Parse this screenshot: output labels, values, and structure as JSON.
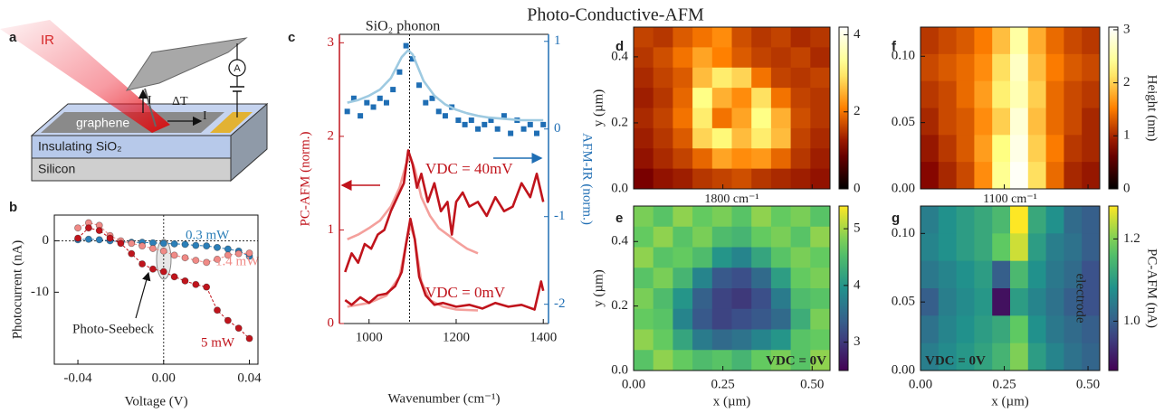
{
  "title": "Photo-Conductive-AFM",
  "schematic": {
    "panel": "a",
    "ir": "IR",
    "current_tip": "I",
    "delta_t": "ΔT",
    "current_sample": "I",
    "graphene": "graphene",
    "ammeter": "A",
    "sio2": "Insulating SiO₂",
    "silicon": "Silicon"
  },
  "chart_data": [
    {
      "type": "line",
      "panel": "b",
      "xlabel": "Voltage (V)",
      "ylabel": "Photocurrent (nA)",
      "xlim": [
        -0.051,
        0.044
      ],
      "ylim": [
        -24,
        5
      ],
      "xticks": [
        -0.04,
        {
          "value": 0,
          "label": "0.00"
        },
        0.04
      ],
      "yticks": [
        -10,
        0
      ],
      "x": [
        -0.04,
        -0.035,
        -0.03,
        -0.025,
        -0.02,
        -0.015,
        -0.01,
        -0.005,
        0,
        0.005,
        0.01,
        0.015,
        0.02,
        0.025,
        0.03,
        0.035,
        0.04
      ],
      "series": [
        {
          "name": "0.3 mW",
          "color": "#2c7fb8",
          "values": [
            0.2,
            0.3,
            0.2,
            0,
            -0.2,
            -0.3,
            -0.3,
            -0.4,
            -0.5,
            -0.6,
            -0.7,
            -0.9,
            -1,
            -1.3,
            -1.6,
            -2,
            -3
          ]
        },
        {
          "name": "1.4 mW",
          "color": "#f08a86",
          "values": [
            2.5,
            3.5,
            3,
            1,
            0,
            -0.5,
            -1,
            -1.5,
            -2,
            -2.8,
            -3.3,
            -3.8,
            -4.2,
            -3.6,
            -2.8,
            -2.5,
            -2.4
          ]
        },
        {
          "name": "5 mW",
          "color": "#c0141c",
          "values": [
            0.5,
            2.5,
            2,
            0.5,
            -0.5,
            -2.5,
            -4.5,
            -5.5,
            -6,
            -7,
            -7.8,
            -8.5,
            -9,
            -13.5,
            -15.5,
            -17,
            -19
          ]
        }
      ],
      "annotations": [
        "Photo-Seebeck"
      ]
    },
    {
      "type": "dual",
      "panel": "c",
      "title": "SiO₂ phonon",
      "xlabel": "Wavenumber (cm⁻¹)",
      "ylabel": "PC-AFM (norm.)",
      "y2label": "AFM-IR (norm.)",
      "xlim": [
        932,
        1412
      ],
      "ylim": [
        0,
        3.09
      ],
      "y2lim": [
        -2.22,
        1.08
      ],
      "xticks": [
        1000,
        1200,
        1400
      ],
      "yticks": [
        0,
        1,
        2,
        3
      ],
      "y2ticks": [
        -2,
        -1,
        0,
        1
      ],
      "reference_x": 1093,
      "series": [
        {
          "axis": "y2",
          "style": "markers",
          "color": "#1f6eb4",
          "x": [
            950,
            965,
            980,
            995,
            1010,
            1025,
            1040,
            1055,
            1070,
            1085,
            1100,
            1115,
            1130,
            1145,
            1160,
            1175,
            1190,
            1205,
            1220,
            1235,
            1250,
            1265,
            1280,
            1295,
            1310,
            1325,
            1340,
            1355,
            1370,
            1385,
            1400
          ],
          "values": [
            0.2,
            0.35,
            0.15,
            0.3,
            0.25,
            0.35,
            0.3,
            0.45,
            0.65,
            0.95,
            0.8,
            0.5,
            0.3,
            0.35,
            0.2,
            0.15,
            0.25,
            0.1,
            0.05,
            0.1,
            0,
            0.05,
            0.1,
            0,
            0.15,
            -0.05,
            0.1,
            0,
            0.05,
            -0.05,
            0.05
          ]
        },
        {
          "axis": "y2",
          "style": "line",
          "color": "#9ecae1",
          "x": [
            950,
            975,
            1000,
            1025,
            1050,
            1075,
            1090,
            1100,
            1125,
            1150,
            1175,
            1200,
            1225,
            1250,
            1275,
            1300,
            1325,
            1350,
            1375,
            1400
          ],
          "values": [
            0.3,
            0.33,
            0.38,
            0.45,
            0.58,
            0.82,
            0.9,
            0.85,
            0.55,
            0.38,
            0.28,
            0.22,
            0.18,
            0.15,
            0.13,
            0.12,
            0.11,
            0.1,
            0.1,
            0.1
          ]
        },
        {
          "axis": "y",
          "style": "line",
          "color": "#f4a09c",
          "x": [
            950,
            975,
            1000,
            1025,
            1050,
            1070,
            1085,
            1095,
            1105,
            1120,
            1140,
            1160,
            1180,
            1200,
            1225,
            1250
          ],
          "values": [
            0.9,
            0.95,
            1.02,
            1.1,
            1.25,
            1.45,
            1.7,
            1.78,
            1.65,
            1.35,
            1.15,
            1.02,
            0.95,
            0.88,
            0.8,
            0.75
          ]
        },
        {
          "axis": "y",
          "style": "line",
          "color": "#c0141c",
          "x": [
            945,
            960,
            975,
            990,
            1005,
            1020,
            1035,
            1050,
            1065,
            1080,
            1090,
            1100,
            1110,
            1120,
            1135,
            1150,
            1165,
            1180,
            1190,
            1200,
            1215,
            1230,
            1250,
            1270,
            1290,
            1310,
            1330,
            1350,
            1370,
            1385,
            1400
          ],
          "values": [
            0.55,
            0.75,
            0.65,
            0.85,
            0.8,
            0.95,
            1,
            1.2,
            1.35,
            1.5,
            1.85,
            1.7,
            1.45,
            1.6,
            1.3,
            1.5,
            1.2,
            1.3,
            0.95,
            1.3,
            1.4,
            1.25,
            1.3,
            1.15,
            1.35,
            1.2,
            1.25,
            1.5,
            1.35,
            1.6,
            1.3
          ]
        },
        {
          "axis": "y",
          "style": "line",
          "color": "#f4a09c",
          "x": [
            950,
            1000,
            1040,
            1070,
            1085,
            1095,
            1105,
            1120,
            1140,
            1170,
            1200,
            1250
          ],
          "values": [
            0.18,
            0.22,
            0.3,
            0.5,
            0.85,
            1.05,
            0.9,
            0.45,
            0.25,
            0.18,
            0.15,
            0.14
          ]
        },
        {
          "axis": "y",
          "style": "line",
          "color": "#c0141c",
          "x": [
            945,
            960,
            980,
            1000,
            1020,
            1040,
            1060,
            1075,
            1085,
            1095,
            1105,
            1115,
            1130,
            1150,
            1170,
            1200,
            1230,
            1260,
            1290,
            1320,
            1350,
            1380,
            1395,
            1400
          ],
          "values": [
            0.25,
            0.2,
            0.28,
            0.22,
            0.3,
            0.32,
            0.4,
            0.55,
            0.85,
            1.12,
            0.9,
            0.5,
            0.3,
            0.2,
            0.22,
            0.18,
            0.2,
            0.16,
            0.22,
            0.18,
            0.2,
            0.15,
            0.45,
            0.35
          ]
        }
      ],
      "annotations": [
        "VDC = 40mV",
        "VDC = 0mV"
      ]
    },
    {
      "type": "heatmap",
      "panel": "d",
      "ylabel": "y (µm)",
      "caption": "1800 cm⁻¹",
      "colormap": "afmhot",
      "xlim": [
        0,
        0.55
      ],
      "ylim": [
        0,
        0.49
      ],
      "xticks": [
        0,
        0.25,
        0.5
      ],
      "xticklabels": false,
      "yticks": [
        {
          "value": 0,
          "label": "0.0"
        },
        0.2,
        0.4
      ],
      "clim": [
        0,
        4.2
      ],
      "cticks": [
        0,
        2,
        4
      ],
      "z": [
        [
          1.6,
          1.5,
          1.8,
          2.0,
          2.2,
          1.7,
          1.5,
          1.6,
          1.4,
          1.5
        ],
        [
          1.5,
          1.7,
          2.0,
          2.4,
          2.1,
          1.8,
          1.6,
          1.5,
          1.6,
          1.4
        ],
        [
          1.4,
          1.6,
          1.8,
          2.6,
          3.0,
          2.8,
          2.0,
          1.6,
          1.5,
          1.6
        ],
        [
          1.3,
          1.5,
          1.9,
          3.2,
          2.5,
          2.2,
          2.9,
          2.0,
          1.6,
          1.5
        ],
        [
          1.4,
          1.6,
          2.0,
          3.0,
          2.0,
          2.4,
          3.2,
          2.5,
          1.7,
          1.5
        ],
        [
          1.3,
          1.5,
          1.8,
          2.8,
          3.1,
          2.6,
          3.0,
          2.6,
          1.6,
          1.4
        ],
        [
          1.2,
          1.4,
          1.6,
          1.9,
          2.4,
          2.2,
          2.3,
          1.9,
          1.5,
          1.3
        ],
        [
          1.0,
          1.2,
          1.3,
          1.5,
          1.6,
          1.7,
          1.5,
          1.4,
          1.3,
          1.2
        ]
      ]
    },
    {
      "type": "heatmap",
      "panel": "e",
      "ylabel": "y (µm)",
      "xlabel": "x (µm)",
      "colormap": "viridis",
      "xlim": [
        0,
        0.55
      ],
      "ylim": [
        0,
        0.51
      ],
      "xticks": [
        {
          "value": 0,
          "label": "0.00"
        },
        0.25,
        {
          "value": 0.5,
          "label": "0.50"
        }
      ],
      "yticks": [
        {
          "value": 0,
          "label": "0.0"
        },
        0.2,
        0.4
      ],
      "clim": [
        2.5,
        5.4
      ],
      "cticks": [
        3,
        4,
        5
      ],
      "annotations": [
        "VDC = 0V"
      ],
      "z": [
        [
          4.8,
          4.6,
          4.9,
          4.7,
          4.8,
          4.6,
          4.9,
          4.7,
          4.8,
          4.6
        ],
        [
          4.7,
          4.9,
          4.6,
          4.8,
          4.5,
          4.4,
          4.7,
          4.8,
          4.6,
          4.9
        ],
        [
          4.9,
          4.6,
          4.7,
          4.5,
          4.0,
          3.8,
          4.2,
          4.6,
          4.8,
          4.7
        ],
        [
          4.6,
          4.8,
          4.4,
          3.8,
          3.3,
          3.2,
          3.5,
          4.1,
          4.7,
          4.8
        ],
        [
          4.8,
          4.5,
          4.0,
          3.4,
          3.1,
          3.0,
          3.2,
          3.7,
          4.5,
          4.6
        ],
        [
          4.7,
          4.6,
          3.8,
          3.3,
          3.1,
          3.2,
          3.3,
          3.5,
          4.3,
          4.8
        ],
        [
          4.9,
          4.7,
          4.2,
          3.7,
          3.5,
          3.6,
          3.8,
          4.0,
          4.6,
          4.7
        ],
        [
          4.6,
          4.9,
          4.7,
          4.5,
          4.6,
          4.4,
          4.7,
          4.8,
          4.6,
          4.9
        ]
      ]
    },
    {
      "type": "heatmap",
      "panel": "f",
      "caption": "1100 cm⁻¹",
      "clabel": "Height (nm)",
      "colormap": "afmhot",
      "xlim": [
        0,
        0.535
      ],
      "ylim": [
        0,
        0.122
      ],
      "xticks": [
        0,
        0.25,
        0.5
      ],
      "xticklabels": false,
      "yticks": [
        {
          "value": 0,
          "label": "0.00"
        },
        0.05,
        {
          "value": 0.1,
          "label": "0.10"
        }
      ],
      "clim": [
        0,
        3.05
      ],
      "cticks": [
        0,
        1,
        2,
        3
      ],
      "z": [
        [
          1.1,
          1.2,
          1.3,
          1.5,
          1.9,
          2.5,
          1.8,
          1.4,
          1.2,
          1.1
        ],
        [
          1.2,
          1.3,
          1.4,
          1.6,
          2.1,
          2.7,
          1.9,
          1.5,
          1.3,
          1.2
        ],
        [
          1.1,
          1.2,
          1.4,
          1.7,
          2.2,
          2.6,
          2.0,
          1.4,
          1.2,
          1.1
        ],
        [
          1.0,
          1.2,
          1.3,
          1.6,
          2.0,
          2.8,
          1.9,
          1.4,
          1.2,
          1.0
        ],
        [
          0.9,
          1.1,
          1.3,
          1.7,
          2.3,
          2.9,
          2.0,
          1.5,
          1.1,
          1.0
        ],
        [
          0.8,
          1.0,
          1.2,
          1.6,
          2.4,
          3.0,
          2.1,
          1.4,
          1.0,
          0.9
        ]
      ]
    },
    {
      "type": "heatmap",
      "panel": "g",
      "xlabel": "x (µm)",
      "clabel": "PC-AFM (nA)",
      "colormap": "viridis",
      "xlim": [
        0,
        0.535
      ],
      "ylim": [
        0,
        0.12
      ],
      "xticks": [
        {
          "value": 0,
          "label": "0.00"
        },
        0.25,
        {
          "value": 0.5,
          "label": "0.50"
        }
      ],
      "yticks": [
        {
          "value": 0,
          "label": "0.00"
        },
        0.05,
        {
          "value": 0.1,
          "label": "0.10"
        }
      ],
      "clim": [
        0.88,
        1.28
      ],
      "cticks": [
        {
          "value": 1,
          "label": "1.0"
        },
        1.2
      ],
      "annotations": [
        "VDC = 0V",
        "electrode"
      ],
      "z": [
        [
          1.05,
          1.08,
          1.1,
          1.12,
          1.15,
          1.28,
          1.12,
          1.08,
          1.02,
          1.0
        ],
        [
          1.06,
          1.08,
          1.1,
          1.12,
          1.18,
          1.25,
          1.1,
          1.05,
          1.03,
          1.0
        ],
        [
          1.04,
          1.06,
          1.08,
          1.1,
          1.0,
          1.15,
          1.08,
          1.04,
          1.02,
          0.98
        ],
        [
          1.0,
          1.05,
          1.07,
          1.09,
          0.9,
          1.1,
          1.06,
          1.03,
          1.0,
          0.98
        ],
        [
          1.03,
          1.06,
          1.08,
          1.1,
          1.12,
          1.18,
          1.08,
          1.04,
          1.02,
          1.0
        ],
        [
          1.05,
          1.07,
          1.09,
          1.11,
          1.14,
          1.2,
          1.1,
          1.06,
          1.03,
          1.01
        ]
      ]
    }
  ]
}
